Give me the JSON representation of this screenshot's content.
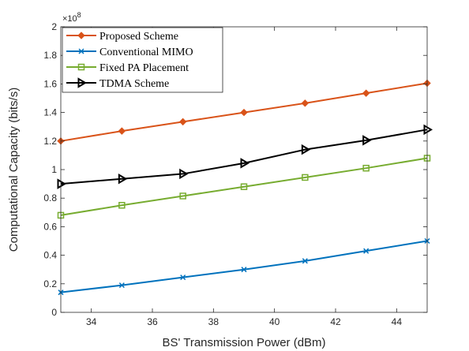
{
  "chart_data": {
    "type": "line",
    "title": "",
    "xlabel": "BS' Transmission Power (dBm)",
    "ylabel": "Computational Capacity (bits/s)",
    "y_exponent_base": "×10",
    "y_exponent_power": "8",
    "xlim": [
      33,
      45
    ],
    "ylim": [
      0,
      2
    ],
    "x_ticks": [
      34,
      36,
      38,
      40,
      42,
      44
    ],
    "y_ticks": [
      0,
      0.2,
      0.4,
      0.6,
      0.8,
      1,
      1.2,
      1.4,
      1.6,
      1.8,
      2
    ],
    "y_tick_labels": [
      "0",
      "0.2",
      "0.4",
      "0.6",
      "0.8",
      "1",
      "1.2",
      "1.4",
      "1.6",
      "1.8",
      "2"
    ],
    "grid": false,
    "legend_position": "top-left",
    "x": [
      33,
      35,
      37,
      39,
      41,
      43,
      45
    ],
    "series": [
      {
        "name": "Proposed Scheme",
        "color": "#D95319",
        "marker": "diamond",
        "values": [
          1.2,
          1.27,
          1.335,
          1.4,
          1.465,
          1.535,
          1.605
        ]
      },
      {
        "name": "Conventional MIMO",
        "color": "#0072BD",
        "marker": "x",
        "values": [
          0.14,
          0.19,
          0.245,
          0.3,
          0.36,
          0.43,
          0.5
        ]
      },
      {
        "name": "Fixed PA Placement",
        "color": "#77AC30",
        "marker": "square",
        "values": [
          0.68,
          0.75,
          0.815,
          0.88,
          0.945,
          1.01,
          1.08
        ]
      },
      {
        "name": "TDMA Scheme",
        "color": "#000000",
        "marker": "triangle-right",
        "values": [
          0.9,
          0.935,
          0.97,
          1.045,
          1.14,
          1.205,
          1.28
        ]
      }
    ]
  }
}
